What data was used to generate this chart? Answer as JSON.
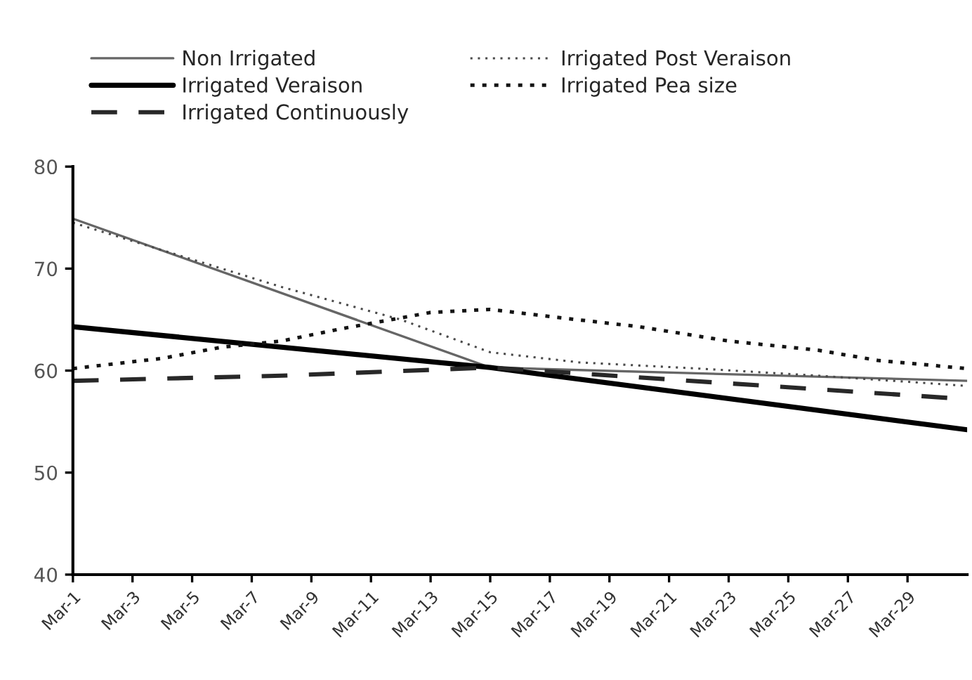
{
  "chart_data": {
    "type": "line",
    "xlim": [
      "--03-01",
      "--03-31"
    ],
    "xticks": [
      {
        "value": "--03-01",
        "label": "Mar-1"
      },
      {
        "value": "--03-03",
        "label": "Mar-3"
      },
      {
        "value": "--03-05",
        "label": "Mar-5"
      },
      {
        "value": "--03-07",
        "label": "Mar-7"
      },
      {
        "value": "--03-09",
        "label": "Mar-9"
      },
      {
        "value": "--03-11",
        "label": "Mar-11"
      },
      {
        "value": "--03-13",
        "label": "Mar-13"
      },
      {
        "value": "--03-15",
        "label": "Mar-15"
      },
      {
        "value": "--03-17",
        "label": "Mar-17"
      },
      {
        "value": "--03-19",
        "label": "Mar-19"
      },
      {
        "value": "--03-21",
        "label": "Mar-21"
      },
      {
        "value": "--03-23",
        "label": "Mar-23"
      },
      {
        "value": "--03-25",
        "label": "Mar-25"
      },
      {
        "value": "--03-27",
        "label": "Mar-27"
      },
      {
        "value": "--03-29",
        "label": "Mar-29"
      }
    ],
    "ylim": [
      40,
      80
    ],
    "yticks": [
      40,
      50,
      60,
      70,
      80
    ],
    "grid": false,
    "legend": "top",
    "marker": "none",
    "series": [
      {
        "name": "Non Irrigated",
        "color": "#666666",
        "line_style": "solid",
        "x": [
          "--03-01",
          "--03-15",
          "--03-31"
        ],
        "values": [
          74.9,
          60.3,
          59.0
        ]
      },
      {
        "name": "Irrigated Post Veraison",
        "color": "#4a4a4a",
        "line_style": "dotted",
        "x": [
          "--03-01",
          "--03-08",
          "--03-12",
          "--03-15",
          "--03-18",
          "--03-22",
          "--03-26",
          "--03-31"
        ],
        "values": [
          74.5,
          68.2,
          65.0,
          61.8,
          60.8,
          60.2,
          59.5,
          58.5
        ]
      },
      {
        "name": "Irrigated Veraison",
        "color": "#000000",
        "line_style": "solid",
        "x": [
          "--03-01",
          "--03-15",
          "--03-31"
        ],
        "values": [
          64.3,
          60.3,
          54.2
        ]
      },
      {
        "name": "Irrigated Pea size",
        "color": "#141414",
        "line_style": "dotted",
        "x": [
          "--03-01",
          "--03-04",
          "--03-06",
          "--03-08",
          "--03-10",
          "--03-13",
          "--03-15",
          "--03-17",
          "--03-20",
          "--03-23",
          "--03-26",
          "--03-28",
          "--03-31"
        ],
        "values": [
          60.2,
          61.2,
          62.3,
          62.9,
          64.1,
          65.7,
          66.0,
          65.3,
          64.3,
          62.9,
          62.0,
          61.0,
          60.2
        ]
      },
      {
        "name": "Irrigated Continuously",
        "color": "#282828",
        "line_style": "dashed",
        "x": [
          "--03-01",
          "--03-08",
          "--03-15",
          "--03-31"
        ],
        "values": [
          59.0,
          59.5,
          60.3,
          57.2
        ]
      }
    ]
  }
}
